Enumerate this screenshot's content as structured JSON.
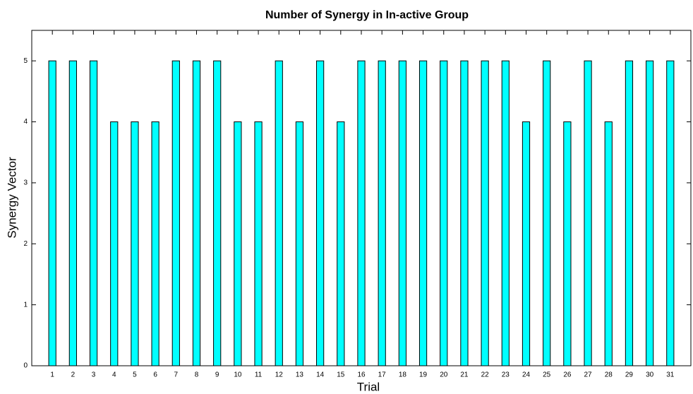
{
  "chart_data": {
    "type": "bar",
    "title": "Number of Synergy in In-active Group",
    "xlabel": "Trial",
    "ylabel": "Synergy Vector",
    "x": [
      1,
      2,
      3,
      4,
      5,
      6,
      7,
      8,
      9,
      10,
      11,
      12,
      13,
      14,
      15,
      16,
      17,
      18,
      19,
      20,
      21,
      22,
      23,
      24,
      25,
      26,
      27,
      28,
      29,
      30,
      31
    ],
    "values": [
      5,
      5,
      5,
      4,
      4,
      4,
      5,
      5,
      5,
      4,
      4,
      5,
      4,
      5,
      4,
      5,
      5,
      5,
      5,
      5,
      5,
      5,
      5,
      4,
      5,
      4,
      5,
      4,
      5,
      5,
      5
    ],
    "color": "#00ffff",
    "xlim": [
      0,
      32
    ],
    "xticks": [
      1,
      2,
      3,
      4,
      5,
      6,
      7,
      8,
      9,
      10,
      11,
      12,
      13,
      14,
      15,
      16,
      17,
      18,
      19,
      20,
      21,
      22,
      23,
      24,
      25,
      26,
      27,
      28,
      29,
      30,
      31
    ],
    "ylim": [
      0,
      5.5
    ],
    "yticks": [
      0,
      1,
      2,
      3,
      4,
      5
    ],
    "grid": false
  }
}
